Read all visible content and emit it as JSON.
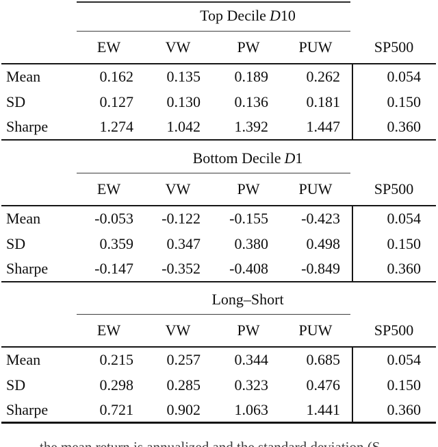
{
  "table": {
    "columns": [
      "EW",
      "VW",
      "PW",
      "PUW",
      "SP500"
    ],
    "row_labels": [
      "Mean",
      "SD",
      "Sharpe"
    ],
    "panels": [
      {
        "title": {
          "text": "Top Decile",
          "math_var": "D",
          "math_num": "10"
        },
        "rows": [
          {
            "label": "Mean",
            "values": [
              "0.162",
              "0.135",
              "0.189",
              "0.262",
              "0.054"
            ]
          },
          {
            "label": "SD",
            "values": [
              "0.127",
              "0.130",
              "0.136",
              "0.181",
              "0.150"
            ]
          },
          {
            "label": "Sharpe",
            "values": [
              "1.274",
              "1.042",
              "1.392",
              "1.447",
              "0.360"
            ]
          }
        ]
      },
      {
        "title": {
          "text": "Bottom Decile",
          "math_var": "D",
          "math_num": "1"
        },
        "rows": [
          {
            "label": "Mean",
            "values": [
              "-0.053",
              "-0.122",
              "-0.155",
              "-0.423",
              "0.054"
            ]
          },
          {
            "label": "SD",
            "values": [
              "0.359",
              "0.347",
              "0.380",
              "0.498",
              "0.150"
            ]
          },
          {
            "label": "Sharpe",
            "values": [
              "-0.147",
              "-0.352",
              "-0.408",
              "-0.849",
              "0.360"
            ]
          }
        ]
      },
      {
        "title": {
          "text": "Long–Short",
          "math_var": "",
          "math_num": ""
        },
        "rows": [
          {
            "label": "Mean",
            "values": [
              "0.215",
              "0.257",
              "0.344",
              "0.685",
              "0.054"
            ]
          },
          {
            "label": "SD",
            "values": [
              "0.298",
              "0.285",
              "0.323",
              "0.476",
              "0.150"
            ]
          },
          {
            "label": "Sharpe",
            "values": [
              "0.721",
              "0.902",
              "1.063",
              "1.441",
              "0.360"
            ]
          }
        ]
      }
    ]
  },
  "caption_fragment": "the mean return is annualized and the standard deviation (S",
  "colors": {
    "rule": "#161616",
    "text": "#0e0e0e"
  }
}
